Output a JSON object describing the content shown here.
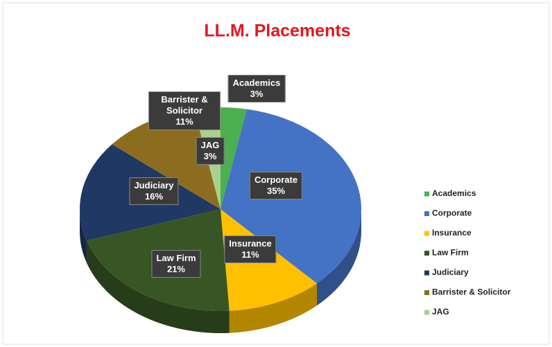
{
  "chart_data": {
    "type": "pie",
    "title": "LL.M. Placements",
    "categories": [
      "Academics",
      "Corporate",
      "Insurance",
      "Law Firm",
      "Judiciary",
      "Barrister & Solicitor",
      "JAG"
    ],
    "values": [
      3,
      35,
      11,
      21,
      16,
      11,
      3
    ],
    "value_labels": [
      "3%",
      "35%",
      "11%",
      "21%",
      "16%",
      "11%",
      "3%"
    ],
    "colors": [
      "#4caf50",
      "#4472c4",
      "#ffc000",
      "#375623",
      "#203864",
      "#8c6d1f",
      "#a9d18e"
    ],
    "legend": "right"
  }
}
